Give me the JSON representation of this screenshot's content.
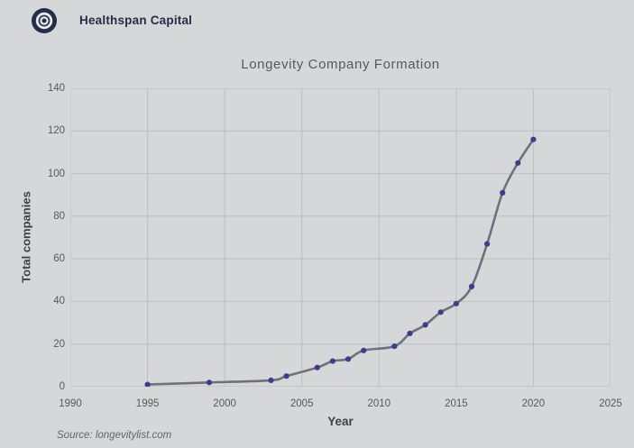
{
  "header": {
    "brand": "Healthspan Capital",
    "logo_icon": "target-bullseye-icon"
  },
  "source_note": "Source: longevitylist.com",
  "colors": {
    "background": "#d5d7d9",
    "gridline": "#bcbfc2",
    "plot_border": "#c6c9cb",
    "line": "#6f7179",
    "marker": "#3d3d8f",
    "brand_text": "#232e49",
    "title_text": "#595959",
    "tick_text": "#595959",
    "axis_label_text": "#3f4245",
    "source_text": "#63666a"
  },
  "chart_data": {
    "type": "line",
    "title": "Longevity Company Formation",
    "xlabel": "Year",
    "ylabel": "Total companies",
    "xlim": [
      1990,
      2025
    ],
    "ylim": [
      0,
      140
    ],
    "xticks": [
      1990,
      1995,
      2000,
      2005,
      2010,
      2015,
      2020,
      2025
    ],
    "yticks": [
      0,
      20,
      40,
      60,
      80,
      100,
      120,
      140
    ],
    "grid": true,
    "legend_position": "none",
    "series": [
      {
        "name": "Total companies",
        "x": [
          1995,
          1999,
          2003,
          2004,
          2006,
          2007,
          2008,
          2009,
          2011,
          2012,
          2013,
          2014,
          2015,
          2016,
          2017,
          2018,
          2019,
          2020
        ],
        "y": [
          1,
          2,
          3,
          5,
          9,
          12,
          13,
          17,
          19,
          25,
          29,
          35,
          39,
          47,
          67,
          91,
          105,
          116
        ]
      }
    ]
  }
}
